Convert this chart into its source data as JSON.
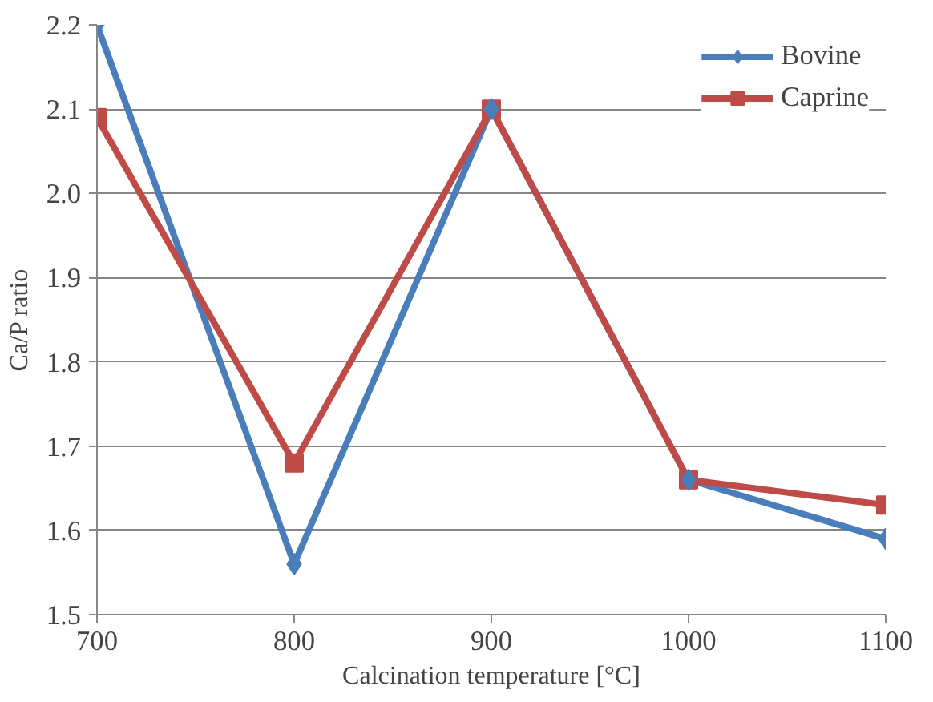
{
  "chart_data": {
    "type": "line",
    "xlabel": "Calcination temperature [°C]",
    "ylabel": "Ca/P ratio",
    "x": [
      700,
      800,
      900,
      1000,
      1100
    ],
    "series": [
      {
        "name": "Bovine",
        "color": "#4a7ebb",
        "marker": "diamond",
        "values": [
          2.2,
          1.56,
          2.1,
          1.66,
          1.59
        ]
      },
      {
        "name": "Caprine",
        "color": "#be4b48",
        "marker": "square",
        "values": [
          2.09,
          1.68,
          2.1,
          1.66,
          1.63
        ]
      }
    ],
    "xlim": [
      700,
      1100
    ],
    "xticks": [
      700,
      800,
      900,
      1000,
      1100
    ],
    "ylim": [
      1.5,
      2.2
    ],
    "yticks": [
      1.5,
      1.6,
      1.7,
      1.8,
      1.9,
      {
        "value": 2.0,
        "label": "2.0"
      },
      2.1,
      2.2
    ],
    "grid": "y",
    "legend": "top right",
    "line_style": "solid"
  }
}
